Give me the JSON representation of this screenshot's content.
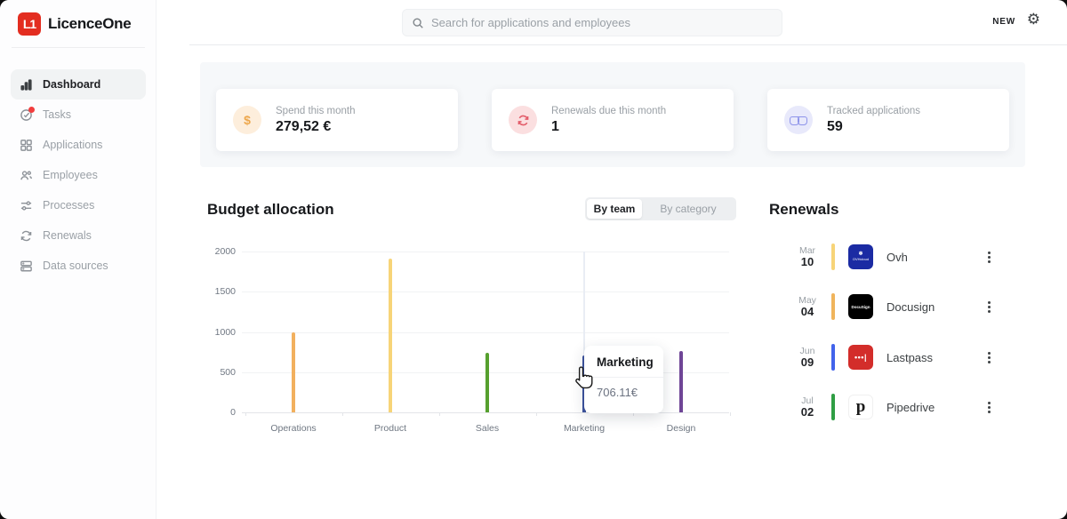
{
  "app": {
    "logo_badge": "L1",
    "logo_text": "LicenceOne"
  },
  "sidebar": {
    "items": [
      {
        "label": "Dashboard",
        "active": true
      },
      {
        "label": "Tasks",
        "notification": true
      },
      {
        "label": "Applications"
      },
      {
        "label": "Employees"
      },
      {
        "label": "Processes"
      },
      {
        "label": "Renewals"
      },
      {
        "label": "Data sources"
      }
    ]
  },
  "topbar": {
    "search_placeholder": "Search for applications and employees",
    "new_label": "NEW"
  },
  "stat_cards": [
    {
      "label": "Spend this month",
      "value": "279,52 €",
      "icon": "dollar-icon",
      "icon_color": "#eda74c",
      "icon_bg": "#fdeedc"
    },
    {
      "label": "Renewals due this month",
      "value": "1",
      "icon": "renewal-icon",
      "icon_color": "#e35d6a",
      "icon_bg": "#fbdfe0"
    },
    {
      "label": "Tracked applications",
      "value": "59",
      "icon": "glasses-icon",
      "icon_color": "#8e94ea",
      "icon_bg": "#e8e9fb"
    }
  ],
  "budget": {
    "title": "Budget allocation",
    "toggle_active": "By team",
    "toggle_inactive": "By category"
  },
  "chart_data": {
    "type": "bar",
    "title": "Budget allocation",
    "categories": [
      "Operations",
      "Product",
      "Sales",
      "Marketing",
      "Design"
    ],
    "values": [
      990,
      1915,
      745,
      706.11,
      765
    ],
    "colors": [
      "#f2b05e",
      "#f7d478",
      "#56a02e",
      "#3e549f",
      "#6f4596"
    ],
    "ylim": [
      0,
      2000
    ],
    "yticks": [
      0,
      500,
      1000,
      1500,
      2000
    ],
    "grid": true,
    "hover_category": "Marketing",
    "tooltip": {
      "title": "Marketing",
      "value": "706.11€"
    }
  },
  "renewals": {
    "title": "Renewals",
    "items": [
      {
        "month": "Mar",
        "day": "10",
        "bar_color": "#f7d478",
        "app": "Ovh",
        "logo_mark": "❄",
        "logo_word": "OVHcloud"
      },
      {
        "month": "May",
        "day": "04",
        "bar_color": "#f0b45c",
        "app": "Docusign",
        "logo_word": "DocuSign"
      },
      {
        "month": "Jun",
        "day": "09",
        "bar_color": "#4263eb",
        "app": "Lastpass",
        "logo_word": "•••|"
      },
      {
        "month": "Jul",
        "day": "02",
        "bar_color": "#2f9e44",
        "app": "Pipedrive",
        "logo_word": "p"
      }
    ]
  }
}
